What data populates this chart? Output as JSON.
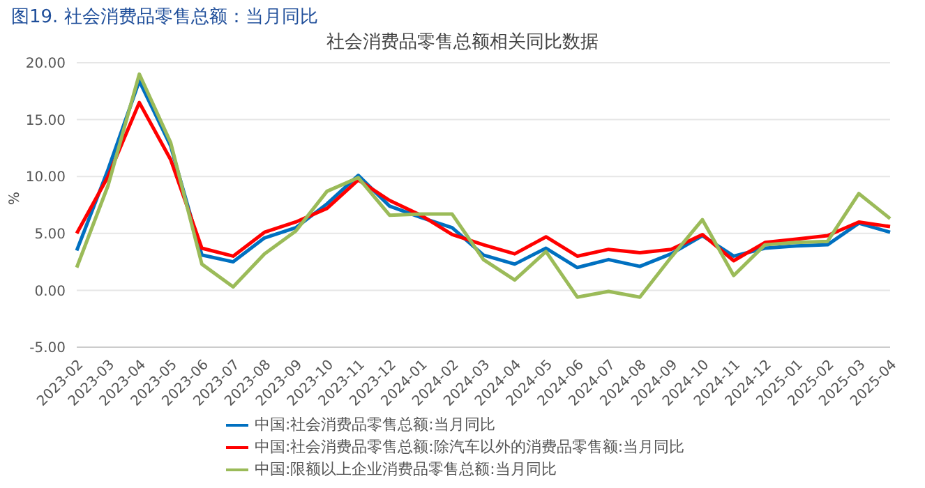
{
  "chart_data": {
    "type": "line",
    "title": "社会消费品零售总额相关同比数据",
    "subtitle": "图19.  社会消费品零售总额：当月同比",
    "ylabel": "%",
    "categories": [
      "2023-02",
      "2023-03",
      "2023-04",
      "2023-05",
      "2023-06",
      "2023-07",
      "2023-08",
      "2023-09",
      "2023-10",
      "2023-11",
      "2023-12",
      "2024-01",
      "2024-02",
      "2024-03",
      "2024-04",
      "2024-05",
      "2024-06",
      "2024-07",
      "2024-08",
      "2024-09",
      "2024-10",
      "2024-11",
      "2024-12",
      "2025-01",
      "2025-02",
      "2025-03",
      "2025-04"
    ],
    "series": [
      {
        "name": "中国:社会消费品零售总额:当月同比",
        "color": "#0070c0",
        "values": [
          3.5,
          10.6,
          18.4,
          12.7,
          3.1,
          2.5,
          4.6,
          5.5,
          7.6,
          10.1,
          7.4,
          6.4,
          5.5,
          3.1,
          2.3,
          3.7,
          2.0,
          2.7,
          2.1,
          3.2,
          4.8,
          3.0,
          3.7,
          3.9,
          4.0,
          5.9,
          5.1
        ]
      },
      {
        "name": "中国:社会消费品零售总额:除汽车以外的消费品零售额:当月同比",
        "color": "#ff0000",
        "values": [
          5.0,
          10.0,
          16.5,
          11.5,
          3.7,
          3.0,
          5.1,
          6.0,
          7.2,
          9.7,
          7.9,
          6.6,
          4.9,
          4.0,
          3.2,
          4.7,
          3.0,
          3.6,
          3.3,
          3.6,
          4.9,
          2.6,
          4.2,
          4.5,
          4.8,
          6.0,
          5.6
        ]
      },
      {
        "name": "中国:限额以上企业消费品零售总额:当月同比",
        "color": "#9bbb59",
        "values": [
          2.0,
          9.2,
          19.0,
          13.0,
          2.3,
          0.3,
          3.2,
          5.2,
          8.7,
          9.9,
          6.6,
          6.7,
          6.7,
          2.7,
          0.9,
          3.4,
          -0.6,
          -0.1,
          -0.6,
          2.9,
          6.2,
          1.3,
          4.0,
          4.2,
          4.3,
          8.5,
          6.3
        ]
      }
    ],
    "ylim": [
      -5,
      20
    ],
    "yticks": [
      {
        "value": -5,
        "label": "-5.00"
      },
      {
        "value": 0,
        "label": "0.00"
      },
      {
        "value": 5,
        "label": "5.00"
      },
      {
        "value": 10,
        "label": "10.00"
      },
      {
        "value": 15,
        "label": "15.00"
      },
      {
        "value": 20,
        "label": "20.00"
      }
    ],
    "grid": "y",
    "legend": "bottom",
    "marker": "none",
    "line_style": "solid"
  }
}
